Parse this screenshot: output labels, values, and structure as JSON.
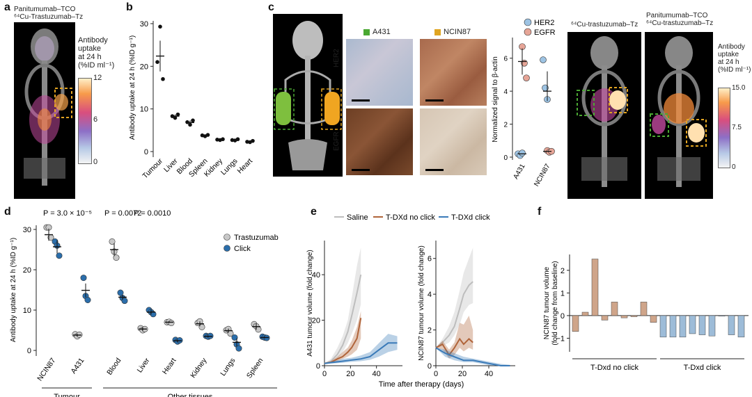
{
  "panel_letters": {
    "a": "a",
    "b": "b",
    "c": "c",
    "d": "d",
    "e": "e",
    "f": "f"
  },
  "panel_a": {
    "title_line1": "Panitumumab–TCO",
    "title_line2": "⁶⁴Cu-Trastuzumab–Tz",
    "colorbar_label_lines": [
      "Antibody",
      "uptake",
      "at 24 h",
      "(%ID ml⁻¹)"
    ],
    "colorbar_ticks": [
      "12",
      "6",
      "0"
    ]
  },
  "panel_c": {
    "legend_a431": "A431",
    "legend_ncin87": "NCIN87",
    "row_her2": "HER2",
    "row_egfr": "EGFR",
    "western_legend": [
      "HER2",
      "EGFR"
    ],
    "western_ylabel": "Normalized signal to β-actin",
    "western_yticks": [
      "0",
      "2",
      "4",
      "6"
    ],
    "western_xticks": [
      "A431",
      "NCIN87"
    ],
    "pet_title_single": "⁶⁴Cu-trastuzumab–Tz",
    "pet_title_dual_line1": "Panitumumab–TCO",
    "pet_title_dual_line2": "⁶⁴Cu-trastuzumab–Tz",
    "colorbar_label_lines": [
      "Antibody",
      "uptake",
      "at 24 h",
      "(%ID ml⁻¹)"
    ],
    "colorbar_ticks": [
      "15.0",
      "7.5",
      "0"
    ]
  },
  "panel_d": {
    "pvalues": [
      "P = 3.0 × 10⁻⁵",
      "P = 0.0072",
      "P = 0.0010"
    ],
    "legend": [
      "Trastuzumab",
      "Click"
    ],
    "group_tumour": "Tumour",
    "group_other": "Other tissues"
  },
  "panel_e": {
    "legend": [
      "Saline",
      "T-DXd no click",
      "T-DXd click"
    ],
    "xlabel_shared": "Time after therapy (days)"
  },
  "panel_f": {
    "group_labels": [
      "T-Dxd no click",
      "T-Dxd click"
    ]
  },
  "colors": {
    "trastuzumab": "#c8c8c8",
    "click": "#2b6eab",
    "saline": "#bdbdbd",
    "noclick": "#b0643a",
    "click_line": "#3a7ab8",
    "bar_noclick": "#cfa58a",
    "bar_click": "#9dbcd8",
    "a431": "#4aa832",
    "ncin87": "#e0a521"
  },
  "chart_data": [
    {
      "id": "b",
      "type": "scatter",
      "ylabel": "Antibody uptake at 24 h (%ID g⁻¹)",
      "ylim": [
        0,
        30
      ],
      "yticks": [
        0,
        10,
        20,
        30
      ],
      "categories": [
        "Tumour",
        "Liver",
        "Blood",
        "Spleen",
        "Kidney",
        "Lungs",
        "Heart"
      ],
      "points": [
        [
          21,
          29.3,
          17
        ],
        [
          8.3,
          7.9,
          8.7
        ],
        [
          6.9,
          6.3,
          7.3
        ],
        [
          3.8,
          3.6,
          3.9
        ],
        [
          2.8,
          2.7,
          2.9
        ],
        [
          2.7,
          2.6,
          2.9
        ],
        [
          2.3,
          2.2,
          2.5
        ]
      ],
      "means": [
        22.4,
        8.3,
        6.8,
        3.8,
        2.8,
        2.7,
        2.3
      ],
      "errors": [
        3.6,
        0.4,
        0.5,
        0.2,
        0.1,
        0.15,
        0.15
      ]
    },
    {
      "id": "d",
      "type": "scatter",
      "ylabel": "Antibody uptake at 24 h (%ID g⁻¹)",
      "ylim": [
        0,
        30
      ],
      "yticks": [
        0,
        10,
        20,
        30
      ],
      "categories": [
        "NCIN87",
        "A431",
        "Blood",
        "Liver",
        "Heart",
        "Kidney",
        "Lungs",
        "Spleen"
      ],
      "series": [
        {
          "name": "Trastuzumab",
          "points": [
            [
              30.5,
              30.5,
              28
            ],
            [
              4,
              3.5,
              3.9
            ],
            [
              27,
              24.5,
              23
            ],
            [
              5.5,
              5,
              5.3
            ],
            [
              7,
              7.1,
              6.8
            ],
            [
              6.8,
              7.2,
              5.8
            ],
            [
              5,
              5.3,
              4.2
            ],
            [
              6.5,
              6,
              5.2
            ]
          ],
          "means": [
            28.7,
            3.8,
            25,
            5.3,
            7,
            6.6,
            4.9,
            5.9
          ],
          "errors": [
            1.5,
            0.3,
            1.6,
            0.4,
            0.2,
            0.6,
            0.5,
            0.8
          ]
        },
        {
          "name": "Click",
          "points": [
            [
              27,
              26,
              23.5
            ],
            [
              18,
              13.5,
              12.5
            ],
            [
              14.3,
              13,
              12.3
            ],
            [
              10,
              9.5,
              9
            ],
            [
              2.6,
              2.2,
              2.5
            ],
            [
              3.6,
              3.4,
              3.6
            ],
            [
              3.2,
              1.5,
              0.5
            ],
            [
              3.4,
              3.2,
              3.1
            ]
          ],
          "means": [
            25.7,
            14.9,
            13.2,
            9.5,
            2.4,
            3.5,
            2,
            3.2
          ],
          "errors": [
            1.6,
            1.7,
            0.6,
            0.6,
            0.3,
            0.2,
            1,
            0.2
          ]
        }
      ]
    },
    {
      "id": "c-western",
      "type": "scatter",
      "ylabel": "Normalized signal to β-actin",
      "ylim": [
        0,
        7
      ],
      "categories": [
        "A431",
        "NCIN87"
      ],
      "series": [
        {
          "name": "HER2",
          "points": [
            [
              0.2,
              0.1,
              0.25
            ],
            [
              5.9,
              4.2,
              3.5
            ]
          ],
          "means": [
            0.2,
            4
          ]
        },
        {
          "name": "EGFR",
          "points": [
            [
              6.7,
              5.7,
              4.8
            ],
            [
              0.4,
              0.3,
              0.35
            ]
          ],
          "means": [
            5.8,
            0.35
          ]
        }
      ]
    },
    {
      "id": "e-left",
      "type": "line",
      "ylabel": "A431 tumour volume (fold change)",
      "xlim": [
        0,
        60
      ],
      "ylim": [
        0,
        55
      ],
      "xticks": [
        0,
        20,
        40
      ],
      "yticks": [
        0,
        20,
        40
      ],
      "series": [
        {
          "name": "Saline",
          "x": [
            0,
            5,
            10,
            14,
            18,
            21,
            25,
            28
          ],
          "y": [
            1,
            2,
            5,
            9,
            15,
            22,
            32,
            40
          ],
          "lo": [
            1,
            1.5,
            3,
            6,
            10,
            14,
            20,
            27
          ],
          "hi": [
            1,
            3,
            8,
            13,
            20,
            30,
            44,
            52
          ]
        },
        {
          "name": "T-DXd no click",
          "x": [
            0,
            5,
            10,
            14,
            18,
            21,
            25,
            28
          ],
          "y": [
            1,
            1.5,
            3,
            4,
            6,
            8,
            12,
            21
          ],
          "lo": [
            1,
            1.2,
            2,
            3,
            4,
            5,
            7,
            12
          ],
          "hi": [
            1,
            2,
            4,
            6,
            8,
            11,
            17,
            24
          ]
        },
        {
          "name": "T-DXd click",
          "x": [
            0,
            7,
            14,
            21,
            28,
            35,
            42,
            49,
            56
          ],
          "y": [
            1,
            1.5,
            2,
            2.5,
            3,
            4,
            7,
            10,
            10
          ],
          "lo": [
            1,
            1,
            1.3,
            1.7,
            2,
            2.6,
            4,
            6,
            7
          ],
          "hi": [
            1,
            2,
            3,
            3.5,
            4.5,
            6,
            10,
            14,
            13
          ]
        }
      ]
    },
    {
      "id": "e-right",
      "type": "line",
      "ylabel": "NCIN87 tumour volume (fold change)",
      "xlim": [
        0,
        60
      ],
      "ylim": [
        0,
        7
      ],
      "xticks": [
        0,
        20,
        40
      ],
      "yticks": [
        0,
        2,
        4,
        6
      ],
      "series": [
        {
          "name": "Saline",
          "x": [
            0,
            5,
            10,
            14,
            18,
            21,
            25,
            28
          ],
          "y": [
            1,
            1.3,
            1.7,
            2.2,
            3.2,
            4,
            4.5,
            4.7
          ],
          "lo": [
            1,
            1.1,
            1.3,
            1.7,
            2.3,
            3,
            3.4,
            3.5
          ],
          "hi": [
            1,
            1.5,
            2.2,
            3,
            4.2,
            5.2,
            6,
            6.6
          ]
        },
        {
          "name": "T-DXd no click",
          "x": [
            0,
            5,
            10,
            14,
            18,
            21,
            25,
            28
          ],
          "y": [
            1,
            1.2,
            0.6,
            1,
            1.5,
            1.2,
            1.5,
            1.3
          ],
          "lo": [
            1,
            0.9,
            0.4,
            0.6,
            1,
            0.8,
            1,
            0.9
          ],
          "hi": [
            1,
            1.4,
            0.9,
            1.3,
            2.4,
            2.3,
            2.8,
            2
          ]
        },
        {
          "name": "T-DXd click",
          "x": [
            0,
            7,
            14,
            21,
            28,
            35,
            42,
            49,
            56
          ],
          "y": [
            1,
            0.7,
            0.5,
            0.3,
            0.3,
            0.2,
            0.1,
            0,
            0
          ],
          "lo": [
            1,
            0.5,
            0.3,
            0.2,
            0.2,
            0.1,
            0,
            0,
            0
          ],
          "hi": [
            1,
            0.9,
            0.7,
            0.5,
            0.4,
            0.3,
            0.2,
            0.1,
            0.05
          ]
        }
      ]
    },
    {
      "id": "f",
      "type": "bar",
      "ylabel": "NCIN87 tumour volume (fold change from baseline)",
      "ylim": [
        -1.6,
        2.7
      ],
      "yticks": [
        -1,
        0,
        1,
        2
      ],
      "groups": [
        {
          "name": "T-Dxd no click",
          "values": [
            -0.7,
            0.15,
            2.5,
            -0.2,
            0.6,
            -0.1,
            -0.05,
            0.6,
            -0.3
          ]
        },
        {
          "name": "T-Dxd click",
          "values": [
            -0.95,
            -0.95,
            -0.95,
            -0.8,
            -0.85,
            -0.9,
            -0.02,
            -0.85,
            -0.95
          ]
        }
      ]
    }
  ]
}
